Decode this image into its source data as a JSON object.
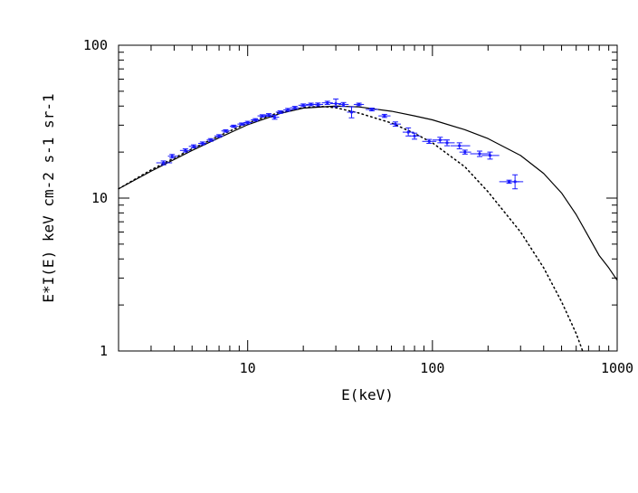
{
  "chart_data": {
    "type": "scatter",
    "title": "",
    "xlabel": "E(keV)",
    "ylabel": "E*I(E) keV cm-2 s-1 sr-1",
    "xscale": "log",
    "yscale": "log",
    "xlim": [
      2,
      1000
    ],
    "ylim": [
      1,
      100
    ],
    "grid": false,
    "legend": "none",
    "x_tick_labels": [
      {
        "value": 10,
        "label": "10"
      },
      {
        "value": 100,
        "label": "100"
      },
      {
        "value": 1000,
        "label": "1000"
      }
    ],
    "y_tick_labels": [
      {
        "value": 1,
        "label": "1"
      },
      {
        "value": 10,
        "label": "10"
      },
      {
        "value": 100,
        "label": "100"
      }
    ],
    "points_color": "#1a1aff",
    "model_color": "#000000",
    "series": [
      {
        "kind": "data",
        "points": [
          {
            "x": 3.5,
            "y": 17.0,
            "xlo": 3.2,
            "xhi": 3.9,
            "ylo": 16.5,
            "yhi": 17.5
          },
          {
            "x": 3.9,
            "y": 18.8,
            "xlo": 3.7,
            "xhi": 4.2,
            "ylo": 18.3,
            "yhi": 19.3
          },
          {
            "x": 4.6,
            "y": 20.5,
            "xlo": 4.3,
            "xhi": 4.9,
            "ylo": 20.0,
            "yhi": 21.0
          },
          {
            "x": 5.1,
            "y": 21.8,
            "xlo": 4.8,
            "xhi": 5.4,
            "ylo": 21.3,
            "yhi": 22.3
          },
          {
            "x": 5.7,
            "y": 22.8,
            "xlo": 5.4,
            "xhi": 6.0,
            "ylo": 22.3,
            "yhi": 23.3
          },
          {
            "x": 6.3,
            "y": 24.0,
            "xlo": 6.0,
            "xhi": 6.7,
            "ylo": 23.5,
            "yhi": 24.5
          },
          {
            "x": 7.0,
            "y": 25.5,
            "xlo": 6.6,
            "xhi": 7.4,
            "ylo": 25.0,
            "yhi": 26.0
          },
          {
            "x": 7.6,
            "y": 27.5,
            "xlo": 7.2,
            "xhi": 8.0,
            "ylo": 27.0,
            "yhi": 28.0
          },
          {
            "x": 8.4,
            "y": 29.5,
            "xlo": 8.0,
            "xhi": 8.9,
            "ylo": 29.0,
            "yhi": 30.0
          },
          {
            "x": 9.3,
            "y": 30.5,
            "xlo": 8.8,
            "xhi": 9.8,
            "ylo": 30.0,
            "yhi": 31.0
          },
          {
            "x": 10.0,
            "y": 31.2,
            "xlo": 9.5,
            "xhi": 10.6,
            "ylo": 30.6,
            "yhi": 31.8
          },
          {
            "x": 11.0,
            "y": 32.5,
            "xlo": 10.4,
            "xhi": 11.6,
            "ylo": 31.9,
            "yhi": 33.1
          },
          {
            "x": 12.0,
            "y": 34.5,
            "xlo": 11.3,
            "xhi": 12.7,
            "ylo": 33.9,
            "yhi": 35.1
          },
          {
            "x": 13.0,
            "y": 35.0,
            "xlo": 12.3,
            "xhi": 13.8,
            "ylo": 34.3,
            "yhi": 35.7
          },
          {
            "x": 14.0,
            "y": 33.8,
            "xlo": 13.3,
            "xhi": 14.8,
            "ylo": 32.8,
            "yhi": 34.8
          },
          {
            "x": 15.0,
            "y": 36.5,
            "xlo": 14.2,
            "xhi": 15.9,
            "ylo": 35.8,
            "yhi": 37.2
          },
          {
            "x": 16.5,
            "y": 37.8,
            "xlo": 15.6,
            "xhi": 17.5,
            "ylo": 37.0,
            "yhi": 38.6
          },
          {
            "x": 18.0,
            "y": 39.0,
            "xlo": 17.0,
            "xhi": 19.0,
            "ylo": 38.2,
            "yhi": 39.8
          },
          {
            "x": 20.0,
            "y": 40.5,
            "xlo": 18.8,
            "xhi": 21.3,
            "ylo": 39.7,
            "yhi": 41.3
          },
          {
            "x": 22.0,
            "y": 41.0,
            "xlo": 20.7,
            "xhi": 23.4,
            "ylo": 40.2,
            "yhi": 41.8
          },
          {
            "x": 24.0,
            "y": 41.0,
            "xlo": 22.5,
            "xhi": 25.6,
            "ylo": 40.1,
            "yhi": 41.9
          },
          {
            "x": 27.0,
            "y": 42.0,
            "xlo": 25.2,
            "xhi": 28.9,
            "ylo": 41.0,
            "yhi": 43.0
          },
          {
            "x": 30.0,
            "y": 41.5,
            "xlo": 28.0,
            "xhi": 32.1,
            "ylo": 39.5,
            "yhi": 44.5
          },
          {
            "x": 33.0,
            "y": 41.0,
            "xlo": 31.0,
            "xhi": 35.2,
            "ylo": 39.8,
            "yhi": 42.2
          },
          {
            "x": 36.5,
            "y": 36.5,
            "xlo": 34.5,
            "xhi": 38.6,
            "ylo": 33.5,
            "yhi": 39.5
          },
          {
            "x": 40.0,
            "y": 41.0,
            "xlo": 37.5,
            "xhi": 42.6,
            "ylo": 40.2,
            "yhi": 41.8
          },
          {
            "x": 47.0,
            "y": 38.0,
            "xlo": 43.5,
            "xhi": 50.8,
            "ylo": 37.2,
            "yhi": 38.8
          },
          {
            "x": 55.0,
            "y": 34.5,
            "xlo": 51.0,
            "xhi": 59.3,
            "ylo": 33.7,
            "yhi": 35.3
          },
          {
            "x": 63.0,
            "y": 30.5,
            "xlo": 58.8,
            "xhi": 67.5,
            "ylo": 29.5,
            "yhi": 31.5
          },
          {
            "x": 74.0,
            "y": 27.0,
            "xlo": 69.0,
            "xhi": 79.4,
            "ylo": 25.5,
            "yhi": 28.8
          },
          {
            "x": 80.0,
            "y": 25.5,
            "xlo": 75.0,
            "xhi": 86.0,
            "ylo": 24.3,
            "yhi": 26.6
          },
          {
            "x": 96.0,
            "y": 23.5,
            "xlo": 88.0,
            "xhi": 105.0,
            "ylo": 22.8,
            "yhi": 24.2
          },
          {
            "x": 110.0,
            "y": 24.0,
            "xlo": 100.0,
            "xhi": 122.0,
            "ylo": 23.0,
            "yhi": 25.0
          },
          {
            "x": 120.0,
            "y": 23.0,
            "xlo": 110.0,
            "xhi": 132.0,
            "ylo": 22.0,
            "yhi": 24.0
          },
          {
            "x": 140.0,
            "y": 22.0,
            "xlo": 125.0,
            "xhi": 160.0,
            "ylo": 21.0,
            "yhi": 23.0
          },
          {
            "x": 150.0,
            "y": 20.0,
            "xlo": 140.0,
            "xhi": 162.0,
            "ylo": 19.4,
            "yhi": 20.6
          },
          {
            "x": 180.0,
            "y": 19.5,
            "xlo": 160.0,
            "xhi": 205.0,
            "ylo": 18.7,
            "yhi": 20.3
          },
          {
            "x": 205.0,
            "y": 19.0,
            "xlo": 185.0,
            "xhi": 230.0,
            "ylo": 18.0,
            "yhi": 20.0
          },
          {
            "x": 260.0,
            "y": 12.8,
            "xlo": 230.0,
            "xhi": 295.0,
            "ylo": 12.5,
            "yhi": 13.1
          },
          {
            "x": 280.0,
            "y": 12.8,
            "xlo": 262.0,
            "xhi": 310.0,
            "ylo": 11.5,
            "yhi": 14.2
          }
        ]
      },
      {
        "kind": "model",
        "style": "solid",
        "points": [
          [
            2,
            11.5
          ],
          [
            3,
            15.0
          ],
          [
            5,
            20.5
          ],
          [
            7,
            24.8
          ],
          [
            10,
            30.2
          ],
          [
            15,
            35.8
          ],
          [
            20,
            38.8
          ],
          [
            30,
            40.0
          ],
          [
            40,
            39.5
          ],
          [
            60,
            37.0
          ],
          [
            80,
            34.5
          ],
          [
            100,
            32.5
          ],
          [
            150,
            28.0
          ],
          [
            200,
            24.5
          ],
          [
            300,
            19.0
          ],
          [
            400,
            14.5
          ],
          [
            500,
            10.8
          ],
          [
            600,
            7.8
          ],
          [
            700,
            5.6
          ],
          [
            800,
            4.2
          ],
          [
            900,
            3.5
          ],
          [
            1000,
            2.9
          ]
        ]
      },
      {
        "kind": "model",
        "style": "dotted",
        "points": [
          [
            2,
            11.5
          ],
          [
            3,
            15.3
          ],
          [
            5,
            21.0
          ],
          [
            7,
            25.5
          ],
          [
            10,
            31.0
          ],
          [
            15,
            36.5
          ],
          [
            20,
            39.0
          ],
          [
            25,
            39.8
          ],
          [
            30,
            39.0
          ],
          [
            40,
            36.0
          ],
          [
            60,
            31.0
          ],
          [
            80,
            26.5
          ],
          [
            100,
            23.0
          ],
          [
            150,
            16.0
          ],
          [
            200,
            11.0
          ],
          [
            300,
            6.0
          ],
          [
            400,
            3.5
          ],
          [
            500,
            2.1
          ],
          [
            600,
            1.3
          ],
          [
            650,
            1.0
          ]
        ]
      }
    ]
  }
}
